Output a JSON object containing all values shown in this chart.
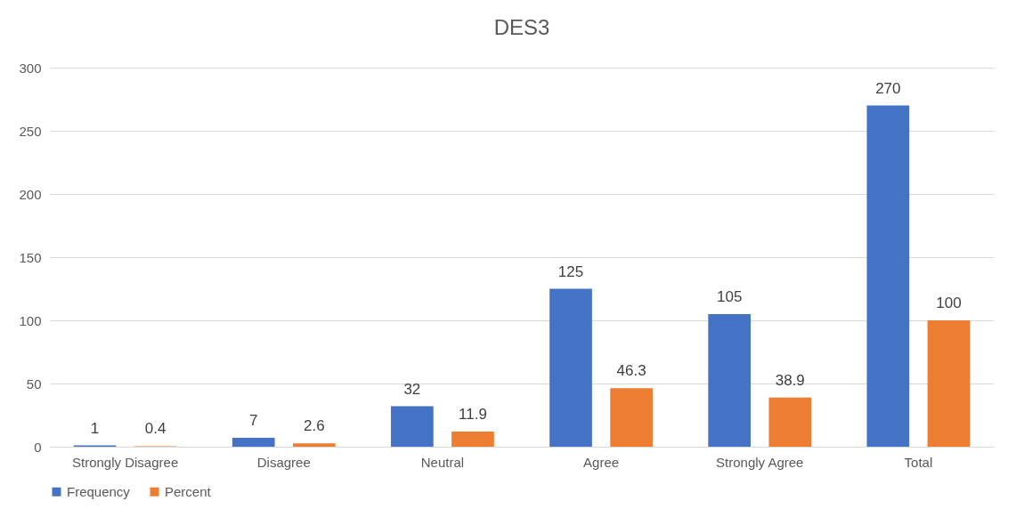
{
  "chart_data": {
    "type": "bar",
    "title": "DES3",
    "categories": [
      "Strongly Disagree",
      "Disagree",
      "Neutral",
      "Agree",
      "Strongly Agree",
      "Total"
    ],
    "series": [
      {
        "name": "Frequency",
        "color": "#4472c4",
        "values": [
          1,
          7,
          32,
          125,
          105,
          270
        ]
      },
      {
        "name": "Percent",
        "color": "#ed7d31",
        "values": [
          0.4,
          2.6,
          11.9,
          46.3,
          38.9,
          100
        ]
      }
    ],
    "ylim": [
      0,
      300
    ],
    "yticks": [
      0,
      50,
      100,
      150,
      200,
      250,
      300
    ],
    "grid": "y",
    "legend": "bottom",
    "data_labels": true
  }
}
